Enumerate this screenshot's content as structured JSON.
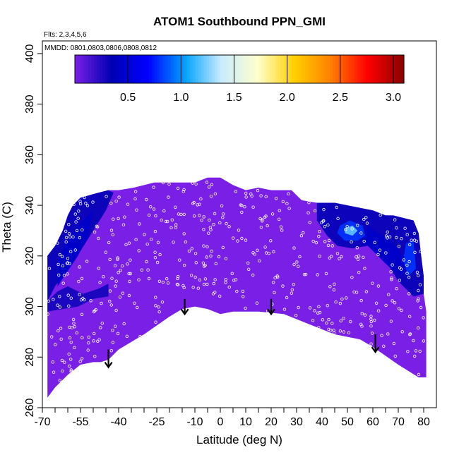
{
  "chart_data": {
    "type": "heatmap",
    "title": "ATOM1 Southbound PPN_GMI",
    "subtitle_flights": "Flts: 2,3,4,5,6",
    "subtitle_dates": "MMDD: 0801,0803,0806,0808,0812",
    "xlabel": "Latitude (deg N)",
    "ylabel": "Theta (C)",
    "xlim": [
      -70,
      85
    ],
    "ylim": [
      260,
      405
    ],
    "x_ticks": [
      -70,
      -55,
      -40,
      -25,
      -10,
      0,
      10,
      20,
      30,
      40,
      50,
      60,
      70,
      80
    ],
    "x_tick_labels": [
      "-70",
      "-55",
      "-40",
      "-25",
      "-10",
      "0",
      "10",
      "20",
      "30",
      "40",
      "50",
      "60",
      "70",
      "80"
    ],
    "x_minor_ticks": [
      -65,
      -60,
      -50,
      -45,
      -35,
      -30,
      -20,
      -15,
      -5,
      5,
      15,
      25,
      35,
      45,
      55,
      65,
      75
    ],
    "y_ticks": [
      260,
      280,
      300,
      320,
      340,
      360,
      380,
      400
    ],
    "y_tick_labels": [
      "260",
      "280",
      "300",
      "320",
      "340",
      "360",
      "380",
      "400"
    ],
    "colorbar": {
      "range": [
        0,
        3.1
      ],
      "ticks": [
        0.5,
        1.0,
        1.5,
        2.0,
        2.5,
        3.0
      ],
      "tick_labels": [
        "0.5",
        "1.0",
        "1.5",
        "2.0",
        "2.5",
        "3.0"
      ],
      "colors": [
        "#7a1fe6",
        "#0000b4",
        "#0000ff",
        "#00a0ff",
        "#c8ecff",
        "#ffffcc",
        "#ffd000",
        "#ff8000",
        "#ff0000",
        "#8b0000"
      ]
    },
    "top_boundary": [
      [
        -68,
        320
      ],
      [
        -65,
        324
      ],
      [
        -62,
        330
      ],
      [
        -60,
        336
      ],
      [
        -58,
        340
      ],
      [
        -55,
        343
      ],
      [
        -48,
        345
      ],
      [
        -44,
        346
      ],
      [
        -40,
        346
      ],
      [
        -34,
        347
      ],
      [
        -30,
        348
      ],
      [
        -26,
        349
      ],
      [
        -20,
        349
      ],
      [
        -10,
        349
      ],
      [
        -5,
        351
      ],
      [
        0,
        351
      ],
      [
        5,
        348
      ],
      [
        10,
        346
      ],
      [
        15,
        347
      ],
      [
        20,
        346
      ],
      [
        28,
        346
      ],
      [
        32,
        342
      ],
      [
        38,
        341
      ],
      [
        45,
        341
      ],
      [
        50,
        340
      ],
      [
        55,
        339
      ],
      [
        60,
        338
      ],
      [
        65,
        336
      ],
      [
        68,
        336
      ],
      [
        72,
        335
      ],
      [
        76,
        334
      ],
      [
        78,
        329
      ],
      [
        79,
        320
      ],
      [
        80,
        312
      ],
      [
        80,
        305
      ],
      [
        81,
        298
      ]
    ],
    "bottom_boundary": [
      [
        81,
        272
      ],
      [
        78,
        272
      ],
      [
        70,
        277
      ],
      [
        60,
        284
      ],
      [
        55,
        287
      ],
      [
        45,
        289
      ],
      [
        35,
        293
      ],
      [
        25,
        297
      ],
      [
        15,
        298
      ],
      [
        5,
        298
      ],
      [
        0,
        297
      ],
      [
        -5,
        299
      ],
      [
        -10,
        300
      ],
      [
        -15,
        299
      ],
      [
        -20,
        296
      ],
      [
        -30,
        289
      ],
      [
        -40,
        283
      ],
      [
        -44,
        279
      ],
      [
        -47,
        278
      ],
      [
        -50,
        278
      ],
      [
        -55,
        277
      ],
      [
        -60,
        273
      ],
      [
        -65,
        268
      ],
      [
        -68,
        264
      ]
    ],
    "regions": [
      {
        "value": 0.35,
        "polygon": [
          [
            -68,
            320
          ],
          [
            -65,
            324
          ],
          [
            -62,
            330
          ],
          [
            -60,
            336
          ],
          [
            -58,
            340
          ],
          [
            -55,
            343
          ],
          [
            -48,
            345
          ],
          [
            -44,
            346
          ],
          [
            -42,
            345
          ],
          [
            -45,
            338
          ],
          [
            -50,
            330
          ],
          [
            -55,
            322
          ],
          [
            -60,
            315
          ],
          [
            -65,
            308
          ],
          [
            -68,
            302
          ]
        ]
      },
      {
        "value": 0.45,
        "polygon": [
          [
            -64,
            318
          ],
          [
            -60,
            326
          ],
          [
            -56,
            332
          ],
          [
            -52,
            336
          ],
          [
            -50,
            338
          ],
          [
            -52,
            328
          ],
          [
            -56,
            320
          ],
          [
            -60,
            314
          ],
          [
            -64,
            308
          ]
        ]
      },
      {
        "value": 0.3,
        "polygon": [
          [
            -68,
            302
          ],
          [
            -64,
            306
          ],
          [
            -60,
            308
          ],
          [
            -54,
            305
          ],
          [
            -48,
            307
          ],
          [
            -44,
            309
          ],
          [
            -44,
            304
          ],
          [
            -50,
            303
          ],
          [
            -56,
            300
          ],
          [
            -62,
            299
          ],
          [
            -68,
            298
          ]
        ]
      },
      {
        "value": 0.35,
        "polygon": [
          [
            38,
            341
          ],
          [
            45,
            341
          ],
          [
            50,
            340
          ],
          [
            55,
            339
          ],
          [
            60,
            338
          ],
          [
            65,
            336
          ],
          [
            68,
            336
          ],
          [
            72,
            335
          ],
          [
            76,
            334
          ],
          [
            78,
            329
          ],
          [
            79,
            320
          ],
          [
            80,
            312
          ],
          [
            80,
            305
          ],
          [
            76,
            304
          ],
          [
            70,
            310
          ],
          [
            65,
            318
          ],
          [
            58,
            324
          ],
          [
            52,
            323
          ],
          [
            46,
            324
          ],
          [
            42,
            328
          ],
          [
            38,
            334
          ]
        ]
      },
      {
        "value": 0.45,
        "polygon": [
          [
            58,
            332
          ],
          [
            62,
            329
          ],
          [
            66,
            327
          ],
          [
            70,
            323
          ],
          [
            73,
            317
          ],
          [
            72,
            312
          ],
          [
            66,
            316
          ],
          [
            60,
            322
          ],
          [
            56,
            326
          ]
        ]
      },
      {
        "value": 0.8,
        "polygon": [
          [
            47,
            332
          ],
          [
            51,
            334
          ],
          [
            56,
            332
          ],
          [
            57,
            328
          ],
          [
            54,
            326
          ],
          [
            49,
            326
          ],
          [
            46,
            329
          ]
        ]
      },
      {
        "value": 1.2,
        "polygon": [
          [
            49,
            331
          ],
          [
            52,
            332
          ],
          [
            54,
            330
          ],
          [
            52,
            328
          ],
          [
            49,
            329
          ]
        ]
      },
      {
        "value": 0.8,
        "polygon": [
          [
            73,
            325
          ],
          [
            76,
            326
          ],
          [
            77,
            315
          ],
          [
            74,
            312
          ],
          [
            72,
            318
          ]
        ]
      }
    ],
    "arrows": [
      {
        "x": -44,
        "y_top": 283,
        "y_tip": 276
      },
      {
        "x": -14,
        "y_top": 303,
        "y_tip": 297
      },
      {
        "x": 20,
        "y_top": 303,
        "y_tip": 297
      },
      {
        "x": 61,
        "y_top": 289,
        "y_tip": 282
      }
    ],
    "grid": false
  }
}
